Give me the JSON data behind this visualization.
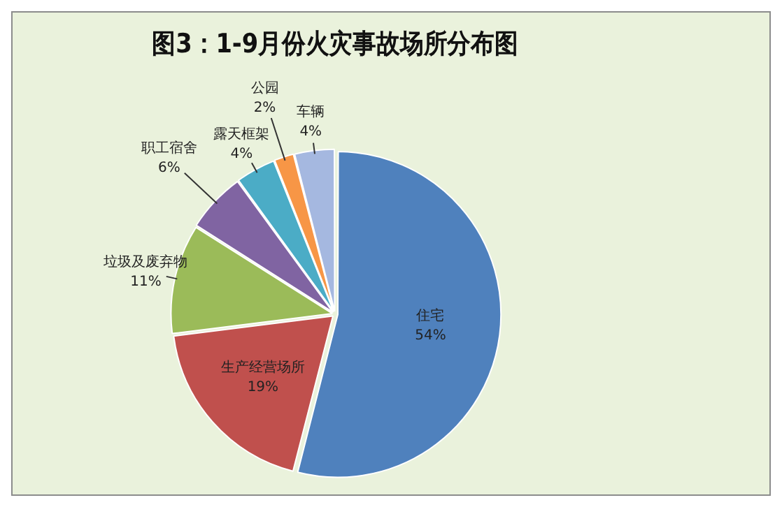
{
  "chart_data": {
    "type": "pie",
    "title": "图3：1-9月份火灾事故场所分布图",
    "categories": [
      "住宅",
      "生产经营场所",
      "垃圾及废弃物",
      "职工宿舍",
      "露天框架",
      "公园",
      "车辆"
    ],
    "values": [
      54,
      19,
      11,
      6,
      4,
      2,
      4
    ],
    "colors": [
      "#4f81bd",
      "#c0504d",
      "#9bbb59",
      "#8064a2",
      "#4bacc6",
      "#f79646",
      "#a5b8e0"
    ],
    "value_labels": [
      "54%",
      "19%",
      "11%",
      "6%",
      "4%",
      "2%",
      "4%"
    ],
    "legend": false
  }
}
